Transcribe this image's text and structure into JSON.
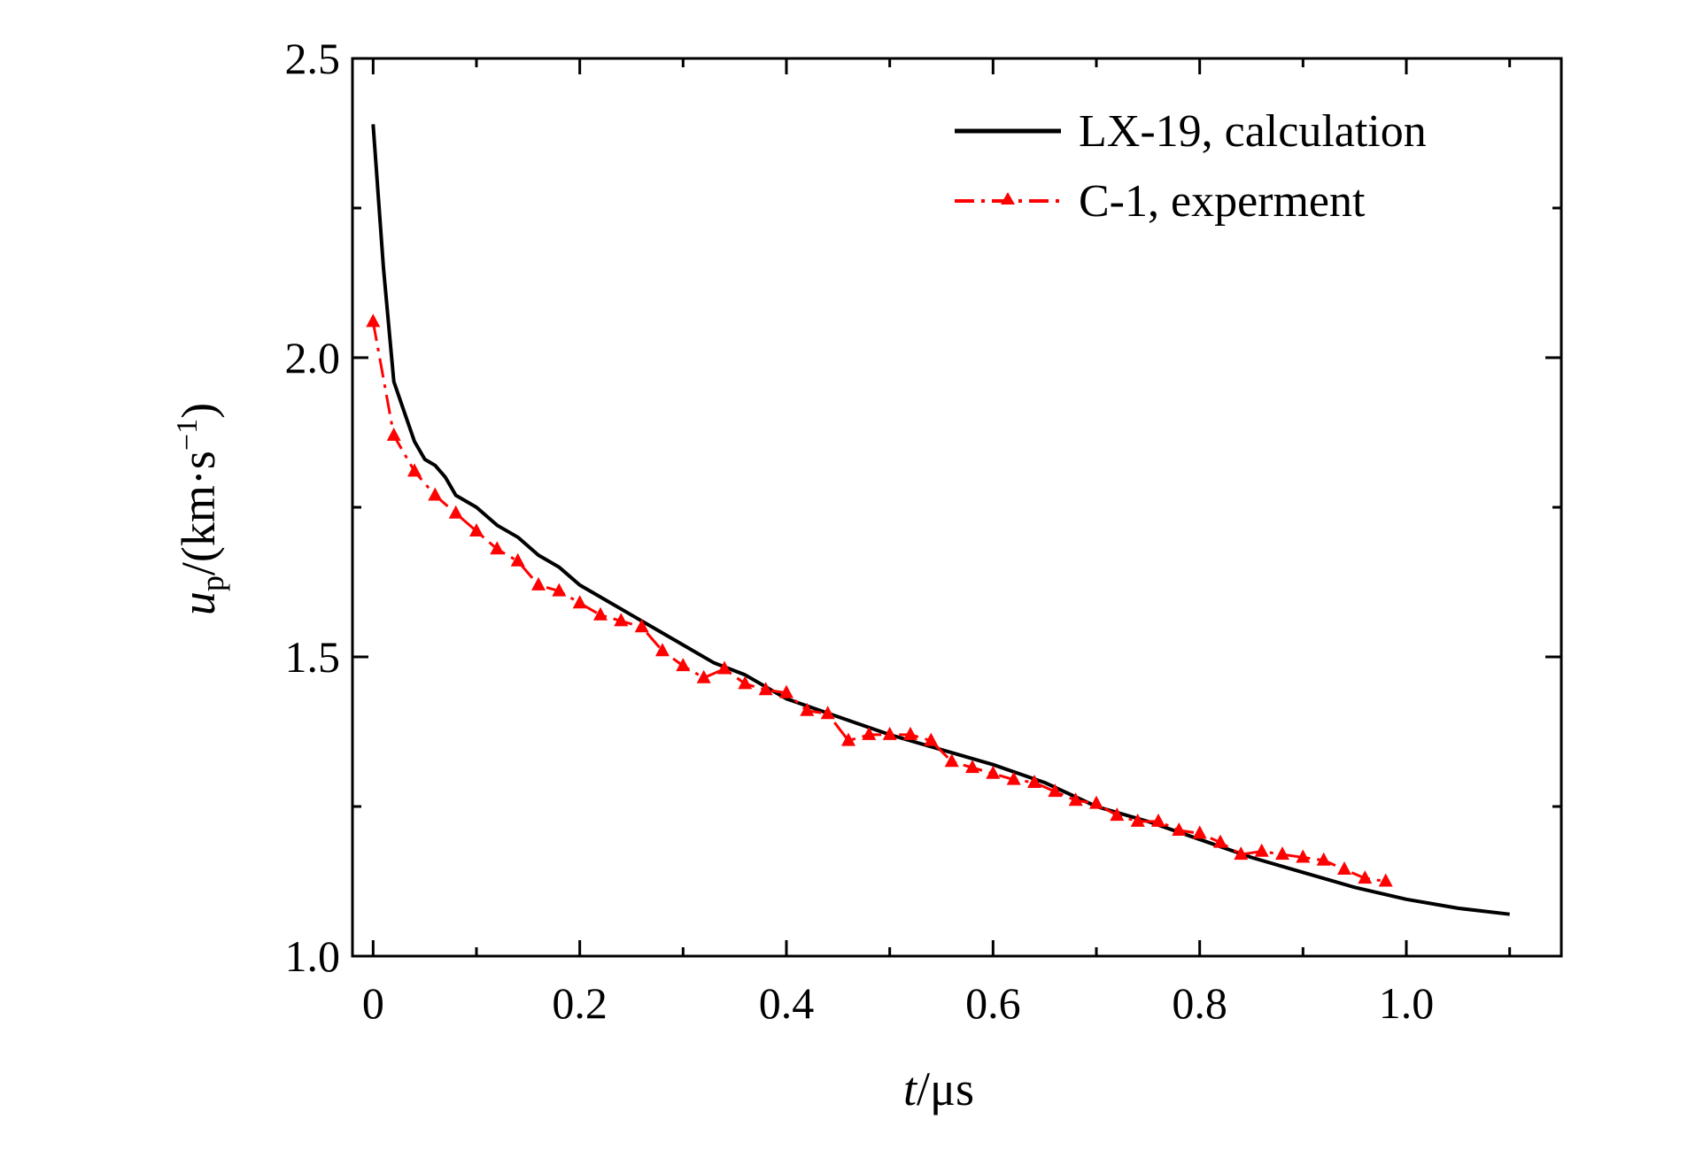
{
  "chart_data": {
    "type": "line",
    "x_axis": {
      "label_italic": "t",
      "label_rest": "/μs",
      "range": [
        -0.02,
        1.15
      ],
      "ticks": [
        0,
        0.2,
        0.4,
        0.6,
        0.8,
        1.0
      ],
      "tick_labels": [
        "0",
        "0.2",
        "0.4",
        "0.6",
        "0.8",
        "1.0"
      ],
      "minor_ticks": [
        0.1,
        0.3,
        0.5,
        0.7,
        0.9,
        1.1
      ]
    },
    "y_axis": {
      "label_italic": "u",
      "label_sub": "p",
      "label_rest": "/(km·s",
      "label_sup": "−1",
      "label_close": ")",
      "range": [
        1.0,
        2.5
      ],
      "ticks": [
        1.0,
        1.5,
        2.0,
        2.5
      ],
      "tick_labels": [
        "1.0",
        "1.5",
        "2.0",
        "2.5"
      ],
      "minor_ticks": [
        1.25,
        1.75,
        2.25
      ]
    },
    "legend": {
      "position": "top-right"
    },
    "series": [
      {
        "name": "LX-19, calculation",
        "color": "#000000",
        "style": "solid",
        "points": [
          [
            0.0,
            2.39
          ],
          [
            0.01,
            2.15
          ],
          [
            0.02,
            1.96
          ],
          [
            0.03,
            1.91
          ],
          [
            0.04,
            1.86
          ],
          [
            0.05,
            1.83
          ],
          [
            0.06,
            1.82
          ],
          [
            0.07,
            1.8
          ],
          [
            0.08,
            1.77
          ],
          [
            0.1,
            1.75
          ],
          [
            0.12,
            1.72
          ],
          [
            0.14,
            1.7
          ],
          [
            0.16,
            1.67
          ],
          [
            0.18,
            1.65
          ],
          [
            0.2,
            1.62
          ],
          [
            0.22,
            1.6
          ],
          [
            0.25,
            1.57
          ],
          [
            0.28,
            1.54
          ],
          [
            0.3,
            1.52
          ],
          [
            0.33,
            1.49
          ],
          [
            0.36,
            1.47
          ],
          [
            0.4,
            1.43
          ],
          [
            0.45,
            1.4
          ],
          [
            0.5,
            1.37
          ],
          [
            0.55,
            1.345
          ],
          [
            0.6,
            1.32
          ],
          [
            0.65,
            1.29
          ],
          [
            0.7,
            1.25
          ],
          [
            0.75,
            1.225
          ],
          [
            0.8,
            1.195
          ],
          [
            0.85,
            1.165
          ],
          [
            0.9,
            1.14
          ],
          [
            0.95,
            1.115
          ],
          [
            1.0,
            1.095
          ],
          [
            1.05,
            1.08
          ],
          [
            1.1,
            1.07
          ]
        ]
      },
      {
        "name": "C-1, experment",
        "color": "#ff0000",
        "style": "dashdot-triangle",
        "points": [
          [
            0.0,
            2.06
          ],
          [
            0.02,
            1.87
          ],
          [
            0.04,
            1.81
          ],
          [
            0.06,
            1.77
          ],
          [
            0.08,
            1.74
          ],
          [
            0.1,
            1.71
          ],
          [
            0.12,
            1.68
          ],
          [
            0.14,
            1.66
          ],
          [
            0.16,
            1.62
          ],
          [
            0.18,
            1.61
          ],
          [
            0.2,
            1.59
          ],
          [
            0.22,
            1.57
          ],
          [
            0.24,
            1.56
          ],
          [
            0.26,
            1.55
          ],
          [
            0.28,
            1.51
          ],
          [
            0.3,
            1.485
          ],
          [
            0.32,
            1.465
          ],
          [
            0.34,
            1.48
          ],
          [
            0.36,
            1.455
          ],
          [
            0.38,
            1.445
          ],
          [
            0.4,
            1.44
          ],
          [
            0.42,
            1.41
          ],
          [
            0.44,
            1.405
          ],
          [
            0.46,
            1.36
          ],
          [
            0.48,
            1.37
          ],
          [
            0.5,
            1.37
          ],
          [
            0.52,
            1.37
          ],
          [
            0.54,
            1.36
          ],
          [
            0.56,
            1.325
          ],
          [
            0.58,
            1.315
          ],
          [
            0.6,
            1.305
          ],
          [
            0.62,
            1.295
          ],
          [
            0.64,
            1.29
          ],
          [
            0.66,
            1.275
          ],
          [
            0.68,
            1.26
          ],
          [
            0.7,
            1.255
          ],
          [
            0.72,
            1.235
          ],
          [
            0.74,
            1.225
          ],
          [
            0.76,
            1.225
          ],
          [
            0.78,
            1.21
          ],
          [
            0.8,
            1.205
          ],
          [
            0.82,
            1.19
          ],
          [
            0.84,
            1.17
          ],
          [
            0.86,
            1.175
          ],
          [
            0.88,
            1.17
          ],
          [
            0.9,
            1.165
          ],
          [
            0.92,
            1.16
          ],
          [
            0.94,
            1.145
          ],
          [
            0.96,
            1.13
          ],
          [
            0.98,
            1.125
          ]
        ]
      }
    ]
  }
}
